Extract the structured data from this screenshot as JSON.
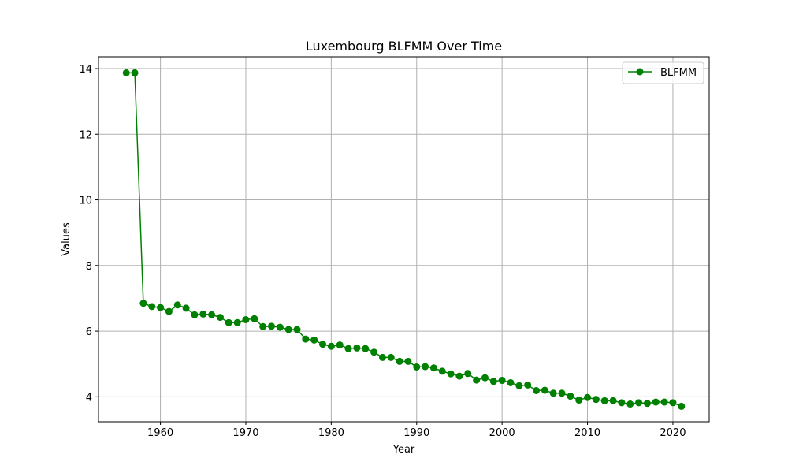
{
  "chart_data": {
    "type": "line",
    "title": "Luxembourg BLFMM Over Time",
    "xlabel": "Year",
    "ylabel": "Values",
    "xlim": [
      1952.75,
      2024.25
    ],
    "ylim": [
      3.24,
      14.36
    ],
    "xticks": [
      1960,
      1970,
      1980,
      1990,
      2000,
      2010,
      2020
    ],
    "yticks": [
      4,
      6,
      8,
      10,
      12,
      14
    ],
    "grid": true,
    "legend_position": "top-right",
    "series": [
      {
        "name": "BLFMM",
        "color": "#008000",
        "marker": "circle",
        "x": [
          1956,
          1957,
          1958,
          1959,
          1960,
          1961,
          1962,
          1963,
          1964,
          1965,
          1966,
          1967,
          1968,
          1969,
          1970,
          1971,
          1972,
          1973,
          1974,
          1975,
          1976,
          1977,
          1978,
          1979,
          1980,
          1981,
          1982,
          1983,
          1984,
          1985,
          1986,
          1987,
          1988,
          1989,
          1990,
          1991,
          1992,
          1993,
          1994,
          1995,
          1996,
          1997,
          1998,
          1999,
          2000,
          2001,
          2002,
          2003,
          2004,
          2005,
          2006,
          2007,
          2008,
          2009,
          2010,
          2011,
          2012,
          2013,
          2014,
          2015,
          2016,
          2017,
          2018,
          2019,
          2020,
          2021
        ],
        "values": [
          13.87,
          13.87,
          6.85,
          6.75,
          6.72,
          6.6,
          6.8,
          6.7,
          6.5,
          6.52,
          6.5,
          6.42,
          6.26,
          6.26,
          6.35,
          6.38,
          6.14,
          6.15,
          6.12,
          6.05,
          6.05,
          5.76,
          5.73,
          5.6,
          5.54,
          5.58,
          5.47,
          5.49,
          5.47,
          5.36,
          5.2,
          5.2,
          5.08,
          5.08,
          4.91,
          4.92,
          4.88,
          4.78,
          4.7,
          4.63,
          4.71,
          4.51,
          4.58,
          4.47,
          4.5,
          4.43,
          4.34,
          4.36,
          4.19,
          4.2,
          4.11,
          4.11,
          4.02,
          3.9,
          3.98,
          3.92,
          3.88,
          3.88,
          3.82,
          3.78,
          3.82,
          3.8,
          3.84,
          3.84,
          3.82,
          3.71
        ]
      }
    ]
  }
}
